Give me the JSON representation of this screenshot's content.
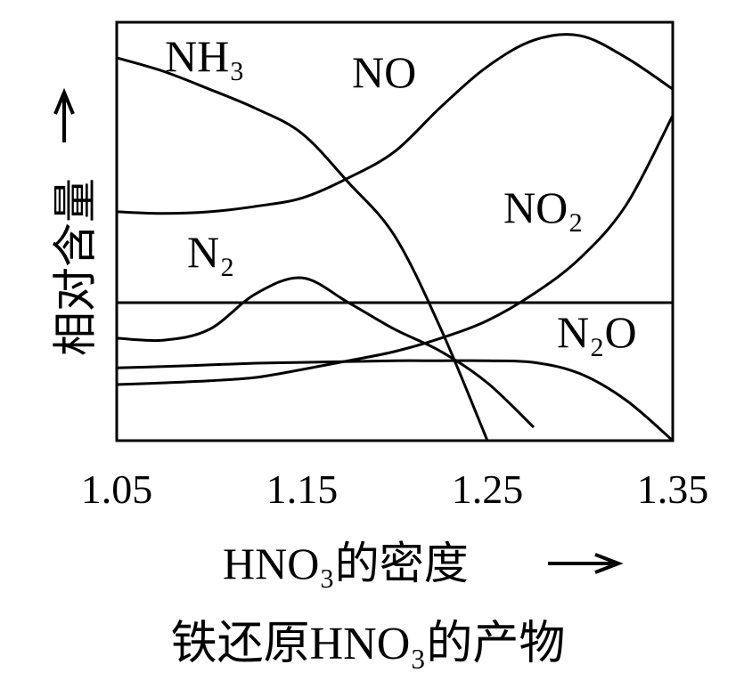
{
  "chart_data": {
    "type": "line",
    "y_label": "相对含量",
    "x_label": "HNO₃的密度",
    "caption": "铁还原HNO₃的产物",
    "x": [
      1.05,
      1.075,
      1.1,
      1.125,
      1.15,
      1.175,
      1.2,
      1.225,
      1.25,
      1.275,
      1.3,
      1.325,
      1.35
    ],
    "xlim": [
      1.05,
      1.35
    ],
    "xticks": [
      1.05,
      1.15,
      1.25,
      1.35
    ],
    "ylim": [
      0,
      100
    ],
    "series": [
      {
        "name": "NH₃",
        "color": "#000000",
        "values": [
          91.5,
          88.3,
          84,
          79.4,
          73.4,
          61.7,
          48.9,
          26.6,
          0,
          null,
          null,
          null,
          null
        ]
      },
      {
        "name": "NO",
        "color": "#000000",
        "values": [
          54.7,
          54.3,
          54.7,
          56,
          58,
          62.8,
          69.1,
          79.8,
          89.4,
          95.7,
          96.8,
          91.5,
          84
        ]
      },
      {
        "name": "NO₂",
        "color": "#000000",
        "values": [
          13.4,
          13.8,
          14.3,
          15.1,
          17,
          19.1,
          21.3,
          24.5,
          28.7,
          35.1,
          43.6,
          56.4,
          77.7
        ]
      },
      {
        "name": "N₂",
        "color": "#000000",
        "values": [
          24.5,
          24,
          26.6,
          35.1,
          38.9,
          33,
          26.6,
          21.3,
          13.8,
          3.2,
          null,
          null,
          null
        ]
      },
      {
        "name": "N₂O",
        "color": "#000000",
        "values": [
          17.4,
          17.7,
          18.1,
          18.5,
          18.7,
          18.9,
          19.1,
          19.1,
          19.1,
          18.7,
          16,
          9.6,
          0
        ]
      }
    ]
  }
}
